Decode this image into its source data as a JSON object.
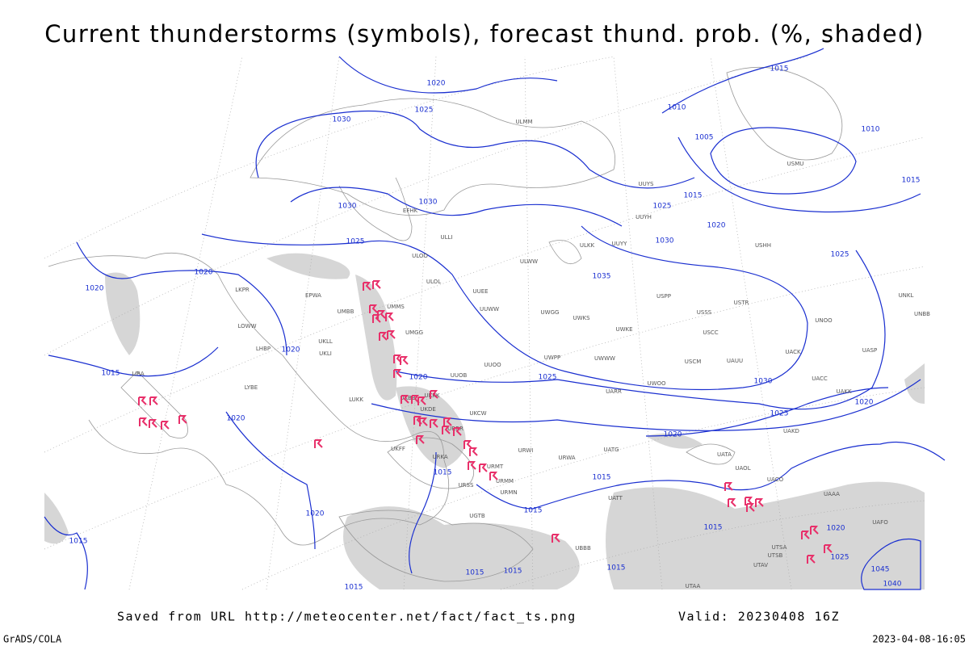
{
  "title": "Current thunderstorms (symbols), forecast thund. prob. (%, shaded)",
  "footer": {
    "source": "Saved from URL http://meteocenter.net/fact/fact_ts.png",
    "valid": "Valid: 20230408 16Z",
    "software": "GrADS/COLA",
    "timestamp": "2023-04-08-16:05"
  },
  "isobar_labels": [
    "1015",
    "1020",
    "1025",
    "1030",
    "1010",
    "1005",
    "1010",
    "1015",
    "1015",
    "1025",
    "1020",
    "1030",
    "1030",
    "1030",
    "1025",
    "1025",
    "1035",
    "1020",
    "1020",
    "1020",
    "1015",
    "1020",
    "1025",
    "1030",
    "1025",
    "1020",
    "1020",
    "1020",
    "1015",
    "1015",
    "1015",
    "1020",
    "1015",
    "1020",
    "1025",
    "1015",
    "1015",
    "1015",
    "1015",
    "1015",
    "1045",
    "1040"
  ],
  "stations": [
    "USMU",
    "ULOO",
    "ULOL",
    "UMMS",
    "UMGG",
    "UKLL",
    "UKLI",
    "EPWA",
    "UMBB",
    "LKPR",
    "LOWW",
    "LHBP",
    "LIRA",
    "LYBE",
    "LUKK",
    "UKBB",
    "UKKK",
    "UKDE",
    "UKFF",
    "URRR",
    "URKA",
    "URMT",
    "URSS",
    "UGTB",
    "UBBB",
    "URMM",
    "URMN",
    "UUEE",
    "UUWW",
    "UWGG",
    "UWKS",
    "UWKE",
    "UWWW",
    "UWPP",
    "UUOB",
    "UUOO",
    "UKCW",
    "URWI",
    "URWA",
    "UATG",
    "UATT",
    "UARR",
    "UWOO",
    "USSS",
    "USCC",
    "USCM",
    "UAUU",
    "USTR",
    "UACK",
    "UACC",
    "UAKK",
    "UAKD",
    "UATA",
    "UAOL",
    "UACO",
    "UAAA",
    "UAFO",
    "UTSA",
    "UTSB",
    "UTAV",
    "UTAA",
    "ULLI",
    "EFHK",
    "ULMM",
    "UUYY",
    "ULKK",
    "UUYH",
    "ULWW",
    "UUYS",
    "USHH",
    "UNKL",
    "UNBB",
    "UASP",
    "UNOO",
    "USPP"
  ]
}
